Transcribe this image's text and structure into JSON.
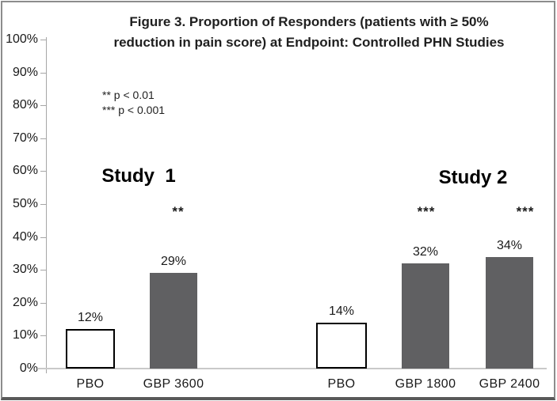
{
  "figure": {
    "border_color": "#8c8c8c",
    "bottom_border_color": "#595959",
    "background": "#ffffff"
  },
  "chart_data": {
    "type": "bar",
    "title": "Figure 3. Proportion of Responders (patients with ≥ 50% reduction in pain score) at Endpoint: Controlled PHN Studies",
    "title_lines": [
      "Figure 3. Proportion of Responders (patients with ≥ 50%",
      "reduction in pain score) at Endpoint: Controlled PHN Studies"
    ],
    "xlabel": "",
    "ylabel": "",
    "ylim": [
      0,
      100
    ],
    "ytick_step": 10,
    "ytick_suffix": "%",
    "grid": false,
    "legend_position": "upper-left",
    "legend_notes": [
      "** p < 0.01",
      "*** p < 0.001"
    ],
    "groups": [
      {
        "name": "Study  1",
        "bars": [
          {
            "label": "PBO",
            "value": 12,
            "value_label": "12%",
            "type": "placebo",
            "significance": ""
          },
          {
            "label": "GBP 3600",
            "value": 29,
            "value_label": "29%",
            "type": "treatment",
            "significance": "**"
          }
        ]
      },
      {
        "name": "Study 2",
        "bars": [
          {
            "label": "PBO",
            "value": 14,
            "value_label": "14%",
            "type": "placebo",
            "significance": ""
          },
          {
            "label": "GBP 1800",
            "value": 32,
            "value_label": "32%",
            "type": "treatment",
            "significance": "***"
          },
          {
            "label": "GBP 2400",
            "value": 34,
            "value_label": "34%",
            "type": "treatment",
            "significance": "***"
          }
        ]
      }
    ],
    "colors": {
      "treatment_bar_fill": "#606062",
      "placebo_bar_fill": "#ffffff",
      "placebo_bar_outline": "#000000",
      "axis": "#a6a6a6",
      "baseline": "#c9c9c9",
      "text": "#1a1a1a"
    }
  }
}
